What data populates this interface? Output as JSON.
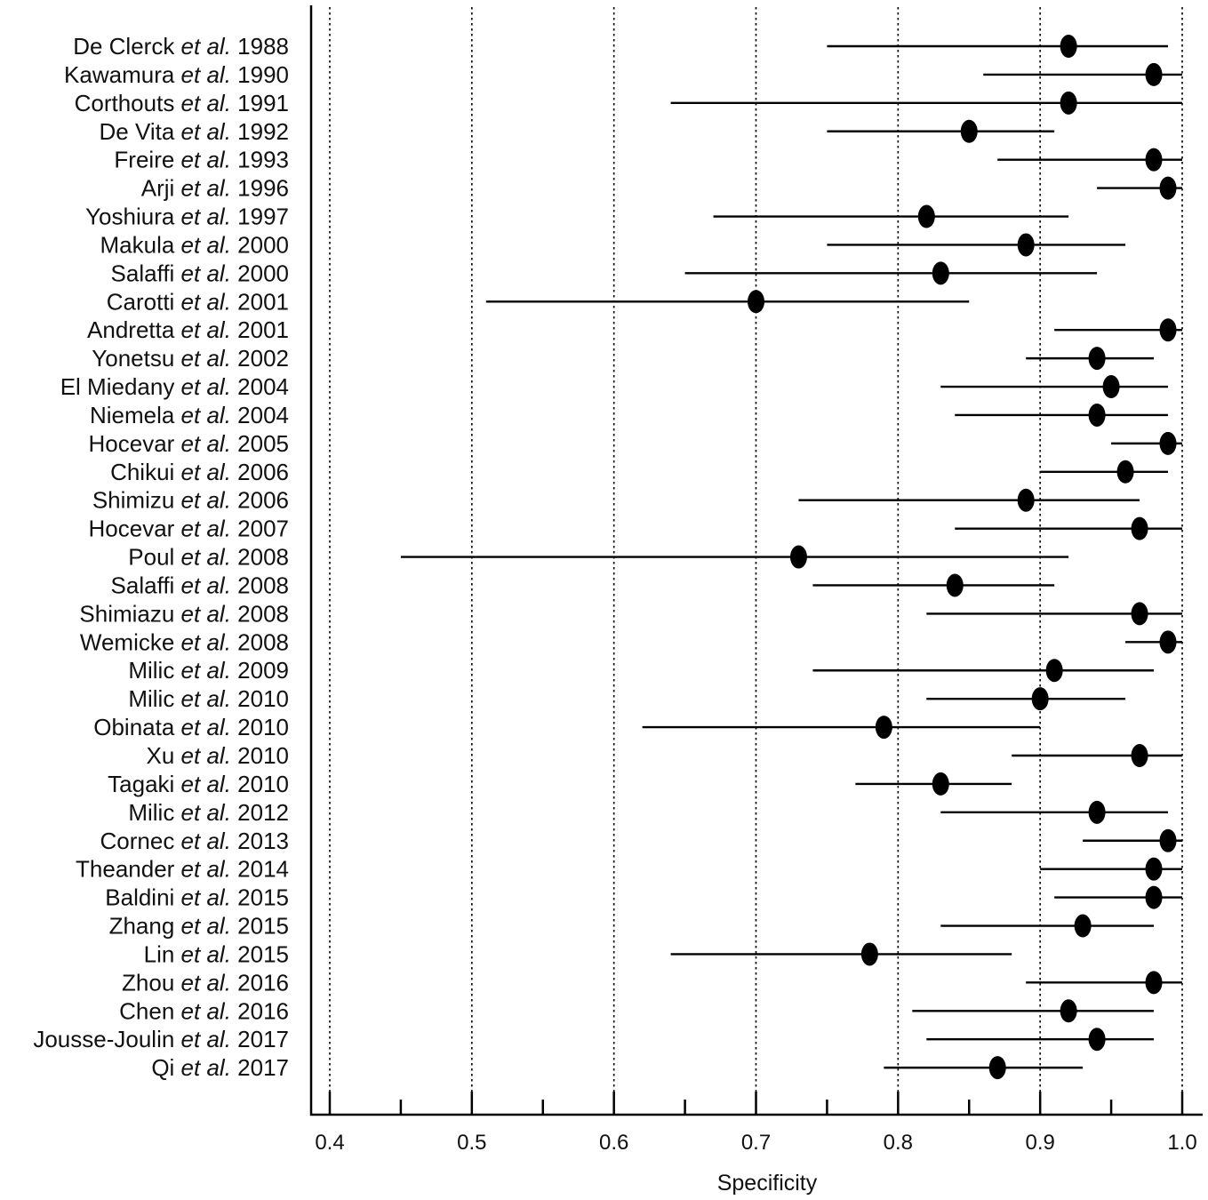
{
  "chart_data": {
    "type": "forest",
    "xlabel": "Specificity",
    "xlim": [
      0.4,
      1.0
    ],
    "xticks": [
      {
        "value": 0.4,
        "label": "0.4"
      },
      {
        "value": 0.5,
        "label": "0.5"
      },
      {
        "value": 0.6,
        "label": "0.6"
      },
      {
        "value": 0.7,
        "label": "0.7"
      },
      {
        "value": 0.8,
        "label": "0.8"
      },
      {
        "value": 0.9,
        "label": "0.9"
      },
      {
        "value": 1.0,
        "label": "1.0"
      }
    ],
    "minor_ticks": [
      0.45,
      0.55,
      0.65,
      0.75,
      0.85,
      0.95
    ],
    "gridlines": "dotted vertical at major ticks",
    "marker_color": "#000000",
    "studies": [
      {
        "author": "De Clerck",
        "etal": "et al.",
        "year": "1988",
        "estimate": 0.92,
        "lower": 0.75,
        "upper": 0.99
      },
      {
        "author": "Kawamura",
        "etal": "et al.",
        "year": "1990",
        "estimate": 0.98,
        "lower": 0.86,
        "upper": 1.0
      },
      {
        "author": "Corthouts",
        "etal": "et al.",
        "year": "1991",
        "estimate": 0.92,
        "lower": 0.64,
        "upper": 1.0
      },
      {
        "author": "De Vita",
        "etal": "et al.",
        "year": "1992",
        "estimate": 0.85,
        "lower": 0.75,
        "upper": 0.91
      },
      {
        "author": "Freire",
        "etal": "et al.",
        "year": "1993",
        "estimate": 0.98,
        "lower": 0.87,
        "upper": 1.0
      },
      {
        "author": "Arji",
        "etal": "et al.",
        "year": "1996",
        "estimate": 0.99,
        "lower": 0.94,
        "upper": 1.0
      },
      {
        "author": "Yoshiura",
        "etal": "et al.",
        "year": "1997",
        "estimate": 0.82,
        "lower": 0.67,
        "upper": 0.92
      },
      {
        "author": "Makula",
        "etal": "et al.",
        "year": "2000",
        "estimate": 0.89,
        "lower": 0.75,
        "upper": 0.96
      },
      {
        "author": "Salaffi",
        "etal": "et al.",
        "year": "2000",
        "estimate": 0.83,
        "lower": 0.65,
        "upper": 0.94
      },
      {
        "author": "Carotti",
        "etal": "et al.",
        "year": "2001",
        "estimate": 0.7,
        "lower": 0.51,
        "upper": 0.85
      },
      {
        "author": "Andretta",
        "etal": "et al.",
        "year": "2001",
        "estimate": 0.99,
        "lower": 0.91,
        "upper": 1.0
      },
      {
        "author": "Yonetsu",
        "etal": "et al.",
        "year": "2002",
        "estimate": 0.94,
        "lower": 0.89,
        "upper": 0.98
      },
      {
        "author": "El Miedany",
        "etal": "et al.",
        "year": "2004",
        "estimate": 0.95,
        "lower": 0.83,
        "upper": 0.99
      },
      {
        "author": "Niemela",
        "etal": "et al.",
        "year": "2004",
        "estimate": 0.94,
        "lower": 0.84,
        "upper": 0.99
      },
      {
        "author": "Hocevar",
        "etal": "et al.",
        "year": "2005",
        "estimate": 0.99,
        "lower": 0.95,
        "upper": 1.0
      },
      {
        "author": "Chikui",
        "etal": "et al.",
        "year": "2006",
        "estimate": 0.96,
        "lower": 0.9,
        "upper": 0.99
      },
      {
        "author": "Shimizu",
        "etal": "et al.",
        "year": "2006",
        "estimate": 0.89,
        "lower": 0.73,
        "upper": 0.97
      },
      {
        "author": "Hocevar",
        "etal": "et al.",
        "year": "2007",
        "estimate": 0.97,
        "lower": 0.84,
        "upper": 1.0
      },
      {
        "author": "Poul",
        "etal": "et al.",
        "year": "2008",
        "estimate": 0.73,
        "lower": 0.45,
        "upper": 0.92
      },
      {
        "author": "Salaffi",
        "etal": "et al.",
        "year": "2008",
        "estimate": 0.84,
        "lower": 0.74,
        "upper": 0.91
      },
      {
        "author": "Shimiazu",
        "etal": "et al.",
        "year": "2008",
        "estimate": 0.97,
        "lower": 0.82,
        "upper": 1.0
      },
      {
        "author": "Wemicke",
        "etal": "et al.",
        "year": "2008",
        "estimate": 0.99,
        "lower": 0.96,
        "upper": 1.0
      },
      {
        "author": "Milic",
        "etal": "et al.",
        "year": "2009",
        "estimate": 0.91,
        "lower": 0.74,
        "upper": 0.98
      },
      {
        "author": "Milic",
        "etal": "et al.",
        "year": "2010",
        "estimate": 0.9,
        "lower": 0.82,
        "upper": 0.96
      },
      {
        "author": "Obinata",
        "etal": "et al.",
        "year": "2010",
        "estimate": 0.79,
        "lower": 0.62,
        "upper": 0.9
      },
      {
        "author": "Xu",
        "etal": "et al.",
        "year": "2010",
        "estimate": 0.97,
        "lower": 0.88,
        "upper": 1.0
      },
      {
        "author": "Tagaki",
        "etal": "et al.",
        "year": "2010",
        "estimate": 0.83,
        "lower": 0.77,
        "upper": 0.88
      },
      {
        "author": "Milic",
        "etal": "et al.",
        "year": "2012",
        "estimate": 0.94,
        "lower": 0.83,
        "upper": 0.99
      },
      {
        "author": "Cornec",
        "etal": "et al.",
        "year": "2013",
        "estimate": 0.99,
        "lower": 0.93,
        "upper": 1.0
      },
      {
        "author": "Theander",
        "etal": "et al.",
        "year": "2014",
        "estimate": 0.98,
        "lower": 0.9,
        "upper": 1.0
      },
      {
        "author": "Baldini",
        "etal": "et al.",
        "year": "2015",
        "estimate": 0.98,
        "lower": 0.91,
        "upper": 1.0
      },
      {
        "author": "Zhang",
        "etal": "et al.",
        "year": "2015",
        "estimate": 0.93,
        "lower": 0.83,
        "upper": 0.98
      },
      {
        "author": "Lin",
        "etal": "et al.",
        "year": "2015",
        "estimate": 0.78,
        "lower": 0.64,
        "upper": 0.88
      },
      {
        "author": "Zhou",
        "etal": "et al.",
        "year": "2016",
        "estimate": 0.98,
        "lower": 0.89,
        "upper": 1.0
      },
      {
        "author": "Chen",
        "etal": "et al.",
        "year": "2016",
        "estimate": 0.92,
        "lower": 0.81,
        "upper": 0.98
      },
      {
        "author": "Jousse-Joulin",
        "etal": "et al.",
        "year": "2017",
        "estimate": 0.94,
        "lower": 0.82,
        "upper": 0.98
      },
      {
        "author": "Qi",
        "etal": "et al.",
        "year": "2017",
        "estimate": 0.87,
        "lower": 0.79,
        "upper": 0.93
      }
    ]
  }
}
